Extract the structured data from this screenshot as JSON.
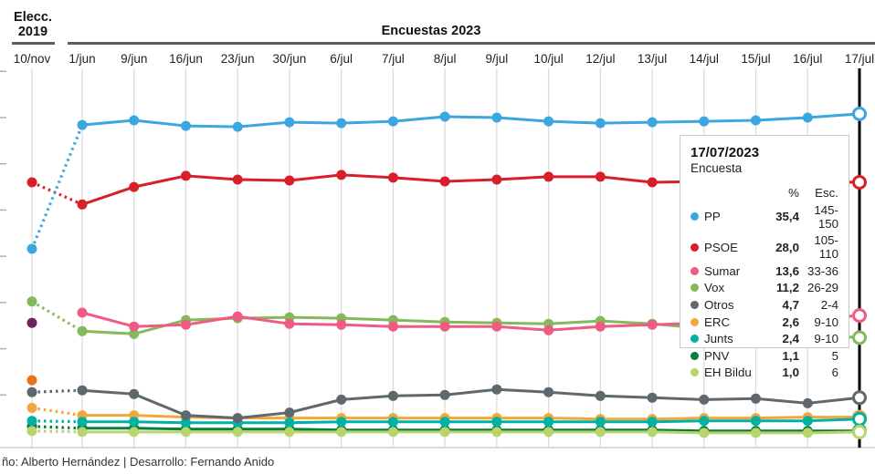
{
  "header": {
    "election_label": "Elecc.\n2019",
    "polls_label": "Encuestas 2023"
  },
  "footer": {
    "credits": "ño: Alberto Hernández | Desarrollo: Fernando Anido"
  },
  "tooltip": {
    "date": "17/07/2023",
    "subtitle": "Encuesta",
    "col_pct": "%",
    "col_esc": "Esc.",
    "rows": [
      {
        "party": "PP",
        "color": "#3BA7E0",
        "pct": "35,4",
        "esc": "145-150"
      },
      {
        "party": "PSOE",
        "color": "#D81E28",
        "pct": "28,0",
        "esc": "105-110"
      },
      {
        "party": "Sumar",
        "color": "#EF5B82",
        "pct": "13,6",
        "esc": "33-36"
      },
      {
        "party": "Vox",
        "color": "#84B95C",
        "pct": "11,2",
        "esc": "26-29"
      },
      {
        "party": "Otros",
        "color": "#5F686D",
        "pct": "4,7",
        "esc": "2-4"
      },
      {
        "party": "ERC",
        "color": "#F2A73D",
        "pct": "2,6",
        "esc": "9-10"
      },
      {
        "party": "Junts",
        "color": "#00B2A2",
        "pct": "2,4",
        "esc": "9-10"
      },
      {
        "party": "PNV",
        "color": "#0A7D3C",
        "pct": "1,1",
        "esc": "5"
      },
      {
        "party": "EH Bildu",
        "color": "#B8D56D",
        "pct": "1,0",
        "esc": "6"
      }
    ]
  },
  "chart_data": {
    "type": "line",
    "title": "Encuestas 2023",
    "xlabel": "",
    "ylabel": "",
    "ylim": [
      0,
      41
    ],
    "y_ticks": [
      5,
      10,
      15,
      20,
      25,
      30,
      35,
      40
    ],
    "y_tick_labels_visible": false,
    "grid": "vertical",
    "legend_position": "tooltip-box",
    "categories": [
      "10/nov",
      "1/jun",
      "9/jun",
      "16/jun",
      "23/jun",
      "30/jun",
      "6/jul",
      "7/jul",
      "8/jul",
      "9/jul",
      "10/jul",
      "12/jul",
      "13/jul",
      "14/jul",
      "15/jul",
      "16/jul",
      "17/jul"
    ],
    "election_category": "10/nov",
    "highlight_category": "17/jul",
    "series": [
      {
        "name": "PP",
        "color": "#3BA7E0",
        "election": 20.8,
        "values": [
          34.2,
          34.7,
          34.1,
          34.0,
          34.5,
          34.4,
          34.6,
          35.1,
          35.0,
          34.6,
          34.4,
          34.5,
          34.6,
          34.7,
          35.0,
          35.4
        ]
      },
      {
        "name": "PSOE",
        "color": "#D81E28",
        "election": 28.0,
        "values": [
          25.6,
          27.5,
          28.7,
          28.3,
          28.2,
          28.8,
          28.5,
          28.1,
          28.3,
          28.6,
          28.6,
          28.0,
          28.1,
          28.2,
          28.1,
          28.0
        ]
      },
      {
        "name": "Sumar",
        "color": "#EF5B82",
        "election": null,
        "values": [
          13.9,
          12.4,
          12.6,
          13.5,
          12.7,
          12.6,
          12.4,
          12.4,
          12.4,
          12.0,
          12.4,
          12.6,
          12.8,
          13.0,
          13.2,
          13.6
        ]
      },
      {
        "name": "Vox",
        "color": "#84B95C",
        "election": 15.1,
        "values": [
          11.9,
          11.6,
          13.1,
          13.3,
          13.4,
          13.3,
          13.1,
          12.9,
          12.8,
          12.7,
          13.0,
          12.7,
          12.2,
          11.8,
          11.5,
          11.2
        ]
      },
      {
        "name": "Otros",
        "color": "#5F686D",
        "election": 5.3,
        "values": [
          5.5,
          5.1,
          2.8,
          2.5,
          3.1,
          4.5,
          4.9,
          5.0,
          5.6,
          5.3,
          4.9,
          4.7,
          4.5,
          4.6,
          4.1,
          4.7
        ]
      },
      {
        "name": "ERC",
        "color": "#F2A73D",
        "election": 3.6,
        "values": [
          2.8,
          2.8,
          2.6,
          2.5,
          2.5,
          2.5,
          2.5,
          2.5,
          2.5,
          2.5,
          2.4,
          2.4,
          2.5,
          2.5,
          2.6,
          2.6
        ]
      },
      {
        "name": "Junts",
        "color": "#00B2A2",
        "election": 2.2,
        "values": [
          2.1,
          2.1,
          2.0,
          2.0,
          2.0,
          2.1,
          2.1,
          2.1,
          2.1,
          2.1,
          2.1,
          2.1,
          2.2,
          2.2,
          2.2,
          2.4
        ]
      },
      {
        "name": "PNV",
        "color": "#0A7D3C",
        "election": 1.6,
        "values": [
          1.4,
          1.4,
          1.3,
          1.3,
          1.3,
          1.2,
          1.2,
          1.2,
          1.2,
          1.2,
          1.2,
          1.2,
          1.1,
          1.1,
          1.1,
          1.1
        ]
      },
      {
        "name": "EH Bildu",
        "color": "#B8D56D",
        "election": 1.1,
        "values": [
          1.0,
          1.0,
          1.0,
          1.0,
          1.0,
          1.0,
          1.0,
          1.0,
          1.0,
          1.0,
          1.0,
          1.0,
          0.9,
          0.9,
          0.9,
          1.0
        ]
      }
    ],
    "election_only_points": [
      {
        "name": "election-point-purple",
        "color": "#6A2560",
        "value": 12.8
      },
      {
        "name": "election-point-orange",
        "color": "#E8711A",
        "value": 6.6
      }
    ],
    "colors": {
      "grid": "#DCDCDC",
      "axis": "#CFCFCF",
      "tick": "#B3B3B3",
      "highlight_line": "#000000",
      "label_text": "#222222"
    }
  }
}
